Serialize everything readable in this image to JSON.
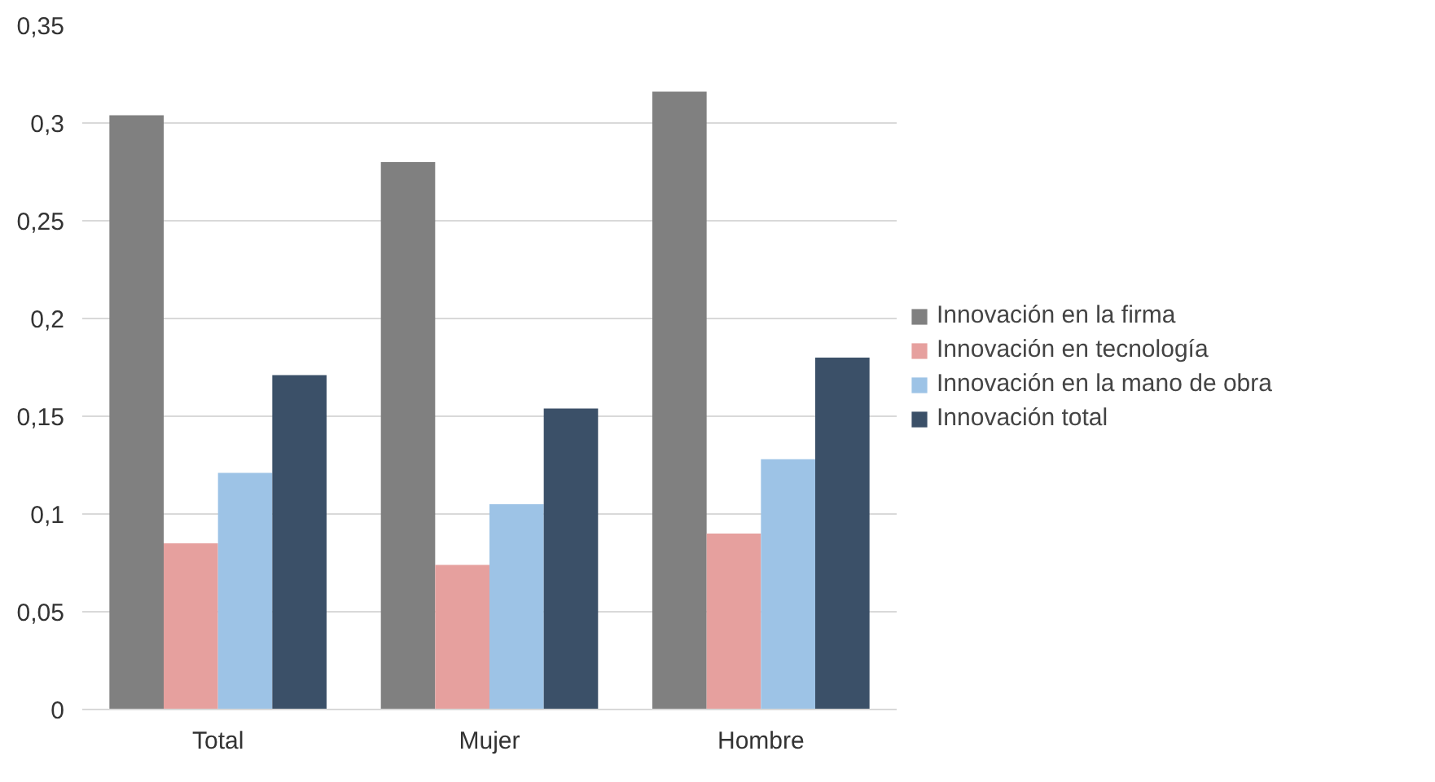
{
  "chart_data": {
    "type": "bar",
    "categories": [
      "Total",
      "Mujer",
      "Hombre"
    ],
    "series": [
      {
        "name": "Innovación en la firma",
        "color": "#808080",
        "values": [
          0.304,
          0.28,
          0.316
        ]
      },
      {
        "name": "Innovación en tecnología",
        "color": "#e6a09e",
        "values": [
          0.085,
          0.074,
          0.09
        ]
      },
      {
        "name": "Innovación en la mano de obra",
        "color": "#9dc3e6",
        "values": [
          0.121,
          0.105,
          0.128
        ]
      },
      {
        "name": "Innovación total",
        "color": "#3b5068",
        "values": [
          0.171,
          0.154,
          0.18
        ]
      }
    ],
    "ylim": [
      0,
      0.35
    ],
    "yticks": [
      {
        "value": 0,
        "label": "0"
      },
      {
        "value": 0.05,
        "label": "0,05"
      },
      {
        "value": 0.1,
        "label": "0,1"
      },
      {
        "value": 0.15,
        "label": "0,15"
      },
      {
        "value": 0.2,
        "label": "0,2"
      },
      {
        "value": 0.25,
        "label": "0,25"
      },
      {
        "value": 0.3,
        "label": "0,3"
      },
      {
        "value": 0.35,
        "label": "0,35"
      }
    ],
    "grid": "y",
    "legend": "right"
  }
}
